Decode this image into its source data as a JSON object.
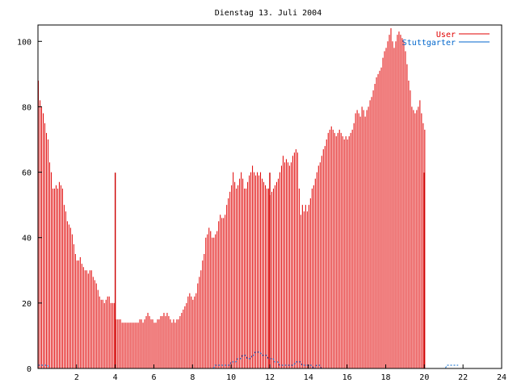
{
  "chart_data": {
    "type": "bar",
    "title": "Dienstag 13. Juli 2004",
    "xlabel": "",
    "ylabel": "",
    "xlim": [
      0,
      24
    ],
    "ylim": [
      0,
      105
    ],
    "x_ticks": [
      2,
      4,
      6,
      8,
      10,
      12,
      14,
      16,
      18,
      20,
      22,
      24
    ],
    "y_ticks": [
      0,
      20,
      40,
      60,
      80,
      100
    ],
    "grid": false,
    "legend_position": "top-right",
    "x_step_minutes": 5,
    "series": [
      {
        "name": "User",
        "style": "impulses",
        "color": "#e00000",
        "values": [
          88,
          82,
          80,
          78,
          75,
          72,
          70,
          63,
          60,
          55,
          55,
          56,
          55,
          57,
          56,
          55,
          50,
          48,
          45,
          44,
          43,
          41,
          38,
          35,
          33,
          33,
          34,
          32,
          31,
          30,
          30,
          29,
          30,
          30,
          28,
          27,
          26,
          24,
          22,
          21,
          21,
          20,
          21,
          22,
          22,
          20,
          20,
          20,
          15,
          15,
          15,
          15,
          14,
          14,
          14,
          14,
          14,
          14,
          14,
          14,
          14,
          14,
          14,
          15,
          15,
          14,
          15,
          16,
          17,
          16,
          15,
          15,
          14,
          14,
          15,
          15,
          16,
          16,
          17,
          16,
          17,
          16,
          15,
          14,
          15,
          14,
          15,
          15,
          16,
          17,
          18,
          19,
          20,
          22,
          23,
          22,
          21,
          22,
          23,
          26,
          28,
          30,
          33,
          35,
          40,
          41,
          43,
          42,
          40,
          40,
          41,
          42,
          45,
          47,
          46,
          46,
          47,
          50,
          52,
          54,
          56,
          60,
          57,
          55,
          56,
          58,
          60,
          58,
          55,
          55,
          57,
          59,
          60,
          62,
          60,
          59,
          60,
          59,
          60,
          58,
          57,
          56,
          55,
          55,
          53,
          54,
          55,
          56,
          57,
          58,
          60,
          62,
          65,
          63,
          64,
          63,
          62,
          63,
          65,
          66,
          67,
          66,
          55,
          47,
          50,
          48,
          50,
          48,
          50,
          52,
          55,
          56,
          58,
          60,
          62,
          63,
          65,
          67,
          68,
          70,
          72,
          73,
          74,
          73,
          72,
          71,
          72,
          73,
          72,
          71,
          70,
          71,
          70,
          71,
          72,
          73,
          75,
          78,
          79,
          78,
          77,
          80,
          79,
          77,
          79,
          80,
          82,
          83,
          85,
          87,
          89,
          90,
          91,
          92,
          95,
          97,
          98,
          100,
          102,
          104,
          100,
          98,
          100,
          102,
          103,
          102,
          101,
          100,
          97,
          93,
          88,
          85,
          80,
          79,
          78,
          79,
          80,
          82,
          78,
          75,
          73
        ]
      },
      {
        "name": "Stuttgarter",
        "style": "lines",
        "color": "#0066cc",
        "values": [
          1,
          1,
          1,
          1,
          1,
          1,
          1,
          0,
          0,
          0,
          0,
          0,
          0,
          0,
          0,
          0,
          0,
          0,
          0,
          0,
          0,
          0,
          0,
          0,
          0,
          0,
          0,
          0,
          0,
          0,
          0,
          0,
          0,
          0,
          0,
          0,
          0,
          0,
          0,
          0,
          0,
          0,
          0,
          0,
          0,
          0,
          0,
          0,
          0,
          0,
          0,
          0,
          0,
          0,
          0,
          0,
          0,
          0,
          0,
          0,
          0,
          0,
          0,
          0,
          0,
          0,
          0,
          0,
          0,
          0,
          0,
          0,
          0,
          0,
          0,
          0,
          0,
          0,
          0,
          0,
          0,
          0,
          0,
          0,
          0,
          0,
          0,
          0,
          0,
          0,
          0,
          0,
          0,
          0,
          0,
          0,
          0,
          0,
          0,
          0,
          0,
          0,
          0,
          0,
          0,
          0,
          0,
          0,
          0,
          0,
          1,
          1,
          1,
          1,
          1,
          1,
          1,
          1,
          1,
          1,
          2,
          2,
          2,
          2,
          3,
          3,
          3,
          4,
          4,
          4,
          3,
          3,
          3,
          4,
          4,
          5,
          5,
          5,
          5,
          4,
          4,
          4,
          4,
          3,
          3,
          3,
          3,
          2,
          2,
          2,
          1,
          1,
          1,
          1,
          1,
          1,
          1,
          1,
          1,
          1,
          2,
          2,
          2,
          2,
          1,
          1,
          1,
          1,
          1,
          1,
          1,
          0,
          0,
          1,
          1,
          1,
          0,
          0,
          0,
          0,
          0,
          0,
          0,
          0,
          0,
          0,
          0,
          0,
          0,
          0,
          0,
          0,
          0,
          0,
          0,
          0,
          0,
          0,
          0,
          0,
          0,
          0,
          0,
          0,
          0,
          0,
          0,
          0,
          0,
          0,
          0,
          0,
          0,
          0,
          0,
          0,
          0,
          0,
          0,
          0,
          0,
          0,
          0,
          0,
          0,
          0,
          0,
          0,
          0,
          0,
          0,
          0,
          0,
          0,
          0,
          0,
          0,
          0,
          0,
          0,
          0,
          0,
          0,
          0,
          0,
          0,
          0,
          0,
          0,
          0,
          0,
          0,
          0,
          0,
          1,
          1,
          1,
          1,
          1,
          1,
          1,
          1
        ]
      }
    ],
    "highlight_lines_x": [
      4,
      12,
      20
    ],
    "highlight_color": "#cc0000"
  }
}
